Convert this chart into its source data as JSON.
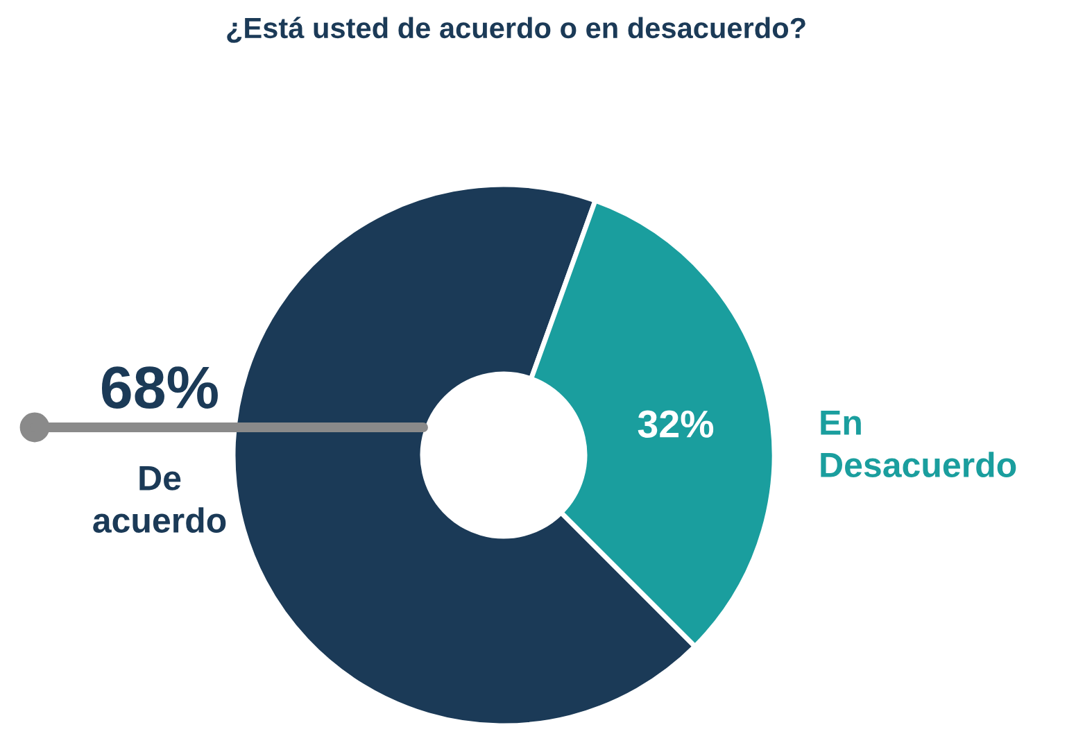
{
  "chart_data": {
    "type": "donut",
    "title": "¿Está usted de acuerdo o en desacuerdo?",
    "categories": [
      "De acuerdo",
      "En Desacuerdo"
    ],
    "values": [
      68,
      32
    ],
    "colors": [
      "#1b3a57",
      "#1a9e9e"
    ],
    "value_labels": [
      "68%",
      "32%"
    ],
    "legend": false
  }
}
